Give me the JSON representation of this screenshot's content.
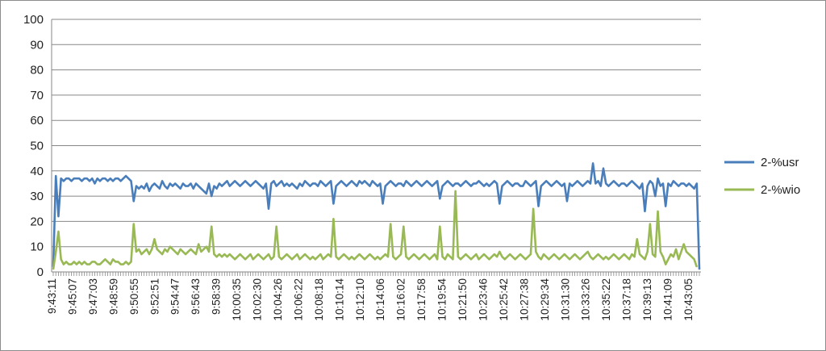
{
  "chart_data": {
    "type": "line",
    "title": "",
    "xlabel": "",
    "ylabel": "",
    "ylim": [
      0,
      100
    ],
    "yticks": [
      0,
      10,
      20,
      30,
      40,
      50,
      60,
      70,
      80,
      90,
      100
    ],
    "grid": "horizontal",
    "legend_position": "right",
    "xtick_labels": [
      "9:43:11",
      "9:45:07",
      "9:47:03",
      "9:48:59",
      "9:50:55",
      "9:52:51",
      "9:54:47",
      "9:56:43",
      "9:58:39",
      "10:00:35",
      "10:02:30",
      "10:04:26",
      "10:06:22",
      "10:08:18",
      "10:10:14",
      "10:12:10",
      "10:14:06",
      "10:16:02",
      "10:17:58",
      "10:19:54",
      "10:21:50",
      "10:23:46",
      "10:25:42",
      "10:27:38",
      "10:29:34",
      "10:31:30",
      "10:33:26",
      "10:35:22",
      "10:37:18",
      "10:39:13",
      "10:41:09",
      "10:43:05"
    ],
    "series": [
      {
        "name": "2-%usr",
        "color": "#4a7ebb",
        "values": [
          2,
          38,
          22,
          37,
          36,
          37,
          37,
          36,
          37,
          37,
          37,
          36,
          37,
          37,
          36,
          37,
          35,
          37,
          36,
          37,
          37,
          36,
          37,
          36,
          37,
          37,
          36,
          37,
          38,
          37,
          36,
          28,
          34,
          33,
          34,
          33,
          35,
          32,
          34,
          35,
          34,
          33,
          36,
          34,
          33,
          35,
          34,
          35,
          34,
          33,
          35,
          34,
          34,
          35,
          33,
          35,
          34,
          33,
          32,
          31,
          35,
          30,
          34,
          33,
          35,
          34,
          35,
          36,
          34,
          35,
          36,
          35,
          34,
          35,
          36,
          35,
          34,
          35,
          36,
          35,
          34,
          33,
          35,
          25,
          35,
          36,
          34,
          35,
          36,
          34,
          35,
          34,
          35,
          34,
          33,
          35,
          34,
          36,
          35,
          34,
          35,
          35,
          34,
          36,
          35,
          34,
          35,
          36,
          27,
          34,
          35,
          36,
          35,
          34,
          35,
          36,
          35,
          34,
          36,
          35,
          36,
          35,
          34,
          36,
          35,
          34,
          35,
          27,
          34,
          35,
          36,
          35,
          34,
          35,
          35,
          34,
          36,
          35,
          34,
          35,
          36,
          35,
          34,
          35,
          36,
          35,
          34,
          35,
          36,
          29,
          34,
          35,
          36,
          35,
          34,
          35,
          35,
          34,
          35,
          36,
          35,
          34,
          35,
          35,
          36,
          35,
          34,
          35,
          34,
          35,
          36,
          35,
          27,
          34,
          35,
          36,
          35,
          34,
          35,
          35,
          34,
          34,
          36,
          35,
          34,
          35,
          36,
          26,
          34,
          35,
          36,
          35,
          34,
          35,
          36,
          35,
          34,
          35,
          28,
          35,
          34,
          35,
          36,
          35,
          34,
          35,
          36,
          35,
          43,
          35,
          36,
          34,
          41,
          35,
          34,
          35,
          36,
          35,
          34,
          35,
          35,
          34,
          35,
          36,
          35,
          34,
          33,
          35,
          24,
          34,
          36,
          35,
          30,
          37,
          34,
          35,
          26,
          35,
          34,
          36,
          35,
          34,
          35,
          35,
          34,
          35,
          34,
          33,
          35,
          1
        ]
      },
      {
        "name": "2-%wio",
        "color": "#98b954",
        "values": [
          1,
          8,
          16,
          5,
          3,
          4,
          3,
          3,
          4,
          3,
          4,
          3,
          4,
          3,
          3,
          4,
          4,
          3,
          3,
          4,
          5,
          4,
          3,
          5,
          4,
          4,
          3,
          3,
          4,
          3,
          4,
          19,
          8,
          9,
          7,
          8,
          9,
          7,
          9,
          13,
          9,
          8,
          7,
          9,
          8,
          10,
          9,
          8,
          7,
          9,
          8,
          7,
          8,
          9,
          8,
          7,
          11,
          8,
          9,
          10,
          8,
          18,
          7,
          6,
          7,
          6,
          7,
          6,
          7,
          6,
          5,
          6,
          7,
          6,
          5,
          6,
          7,
          5,
          6,
          7,
          6,
          5,
          6,
          7,
          5,
          6,
          18,
          6,
          5,
          6,
          7,
          6,
          5,
          6,
          7,
          5,
          6,
          7,
          6,
          5,
          6,
          5,
          6,
          7,
          5,
          6,
          7,
          6,
          21,
          6,
          5,
          6,
          7,
          6,
          5,
          6,
          5,
          6,
          7,
          6,
          5,
          6,
          7,
          6,
          5,
          6,
          5,
          6,
          7,
          6,
          19,
          6,
          5,
          6,
          7,
          18,
          6,
          5,
          6,
          7,
          6,
          5,
          6,
          7,
          6,
          5,
          6,
          7,
          5,
          18,
          6,
          5,
          7,
          6,
          5,
          32,
          6,
          5,
          6,
          7,
          6,
          5,
          6,
          7,
          5,
          6,
          7,
          6,
          5,
          6,
          7,
          6,
          8,
          6,
          5,
          6,
          7,
          6,
          5,
          6,
          7,
          6,
          5,
          6,
          7,
          25,
          8,
          6,
          5,
          7,
          6,
          5,
          6,
          7,
          6,
          5,
          6,
          7,
          6,
          5,
          6,
          7,
          6,
          5,
          6,
          7,
          8,
          6,
          5,
          6,
          7,
          6,
          5,
          6,
          5,
          6,
          7,
          6,
          5,
          6,
          7,
          6,
          5,
          7,
          6,
          13,
          7,
          6,
          5,
          8,
          19,
          7,
          6,
          24,
          8,
          6,
          3,
          5,
          7,
          6,
          9,
          5,
          8,
          11,
          8,
          7,
          6,
          5,
          2
        ]
      }
    ]
  }
}
